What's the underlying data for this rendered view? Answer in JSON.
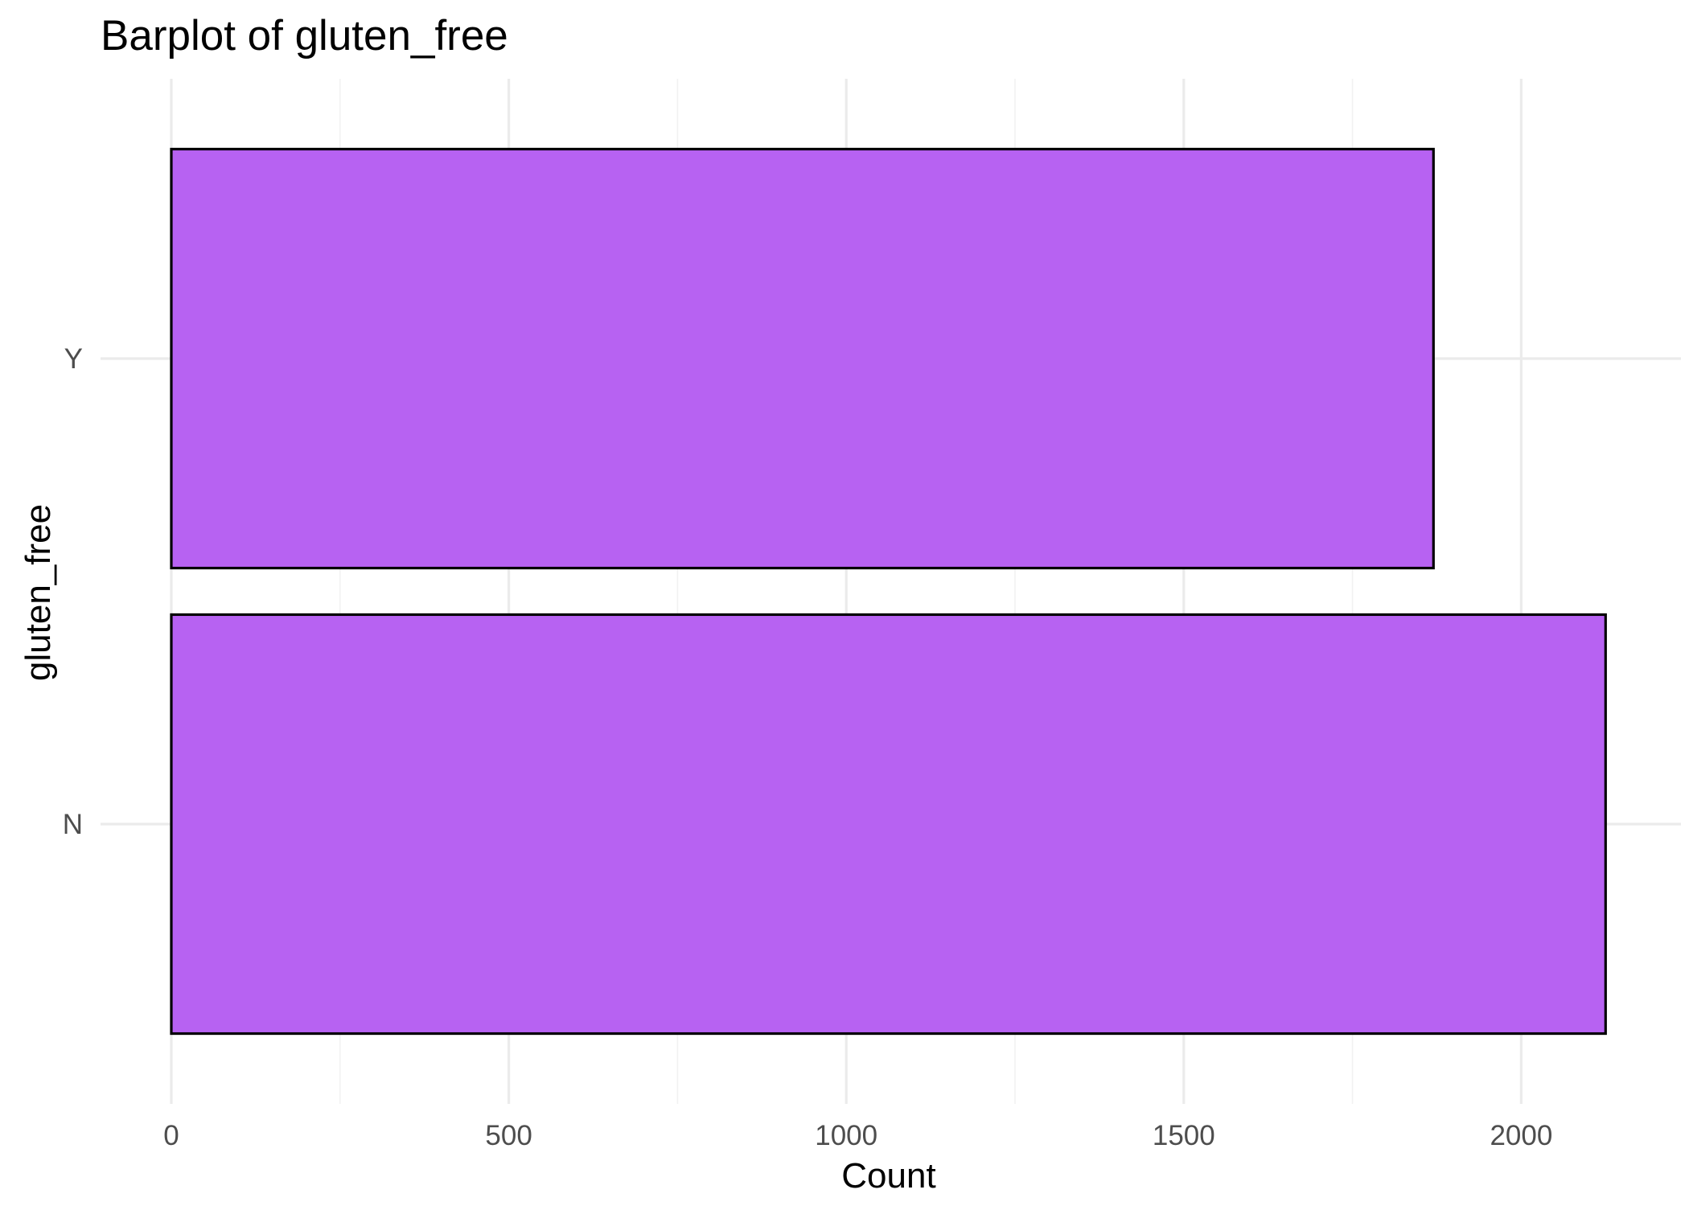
{
  "chart_data": {
    "type": "bar",
    "orientation": "horizontal",
    "title": "Barplot of gluten_free",
    "xlabel": "Count",
    "ylabel": "gluten_free",
    "categories": [
      "N",
      "Y"
    ],
    "values": [
      2125,
      1870
    ],
    "xlim": [
      0,
      2200
    ],
    "x_ticks": [
      0,
      500,
      1000,
      1500,
      2000
    ],
    "x_tick_labels": [
      "0",
      "500",
      "1000",
      "1500",
      "2000"
    ],
    "grid": true,
    "legend": "none",
    "colors": {
      "bar_fill": "#b762f2",
      "bar_stroke": "#000000",
      "grid": "#ebebeb",
      "tick_text": "#4d4d4d"
    }
  }
}
